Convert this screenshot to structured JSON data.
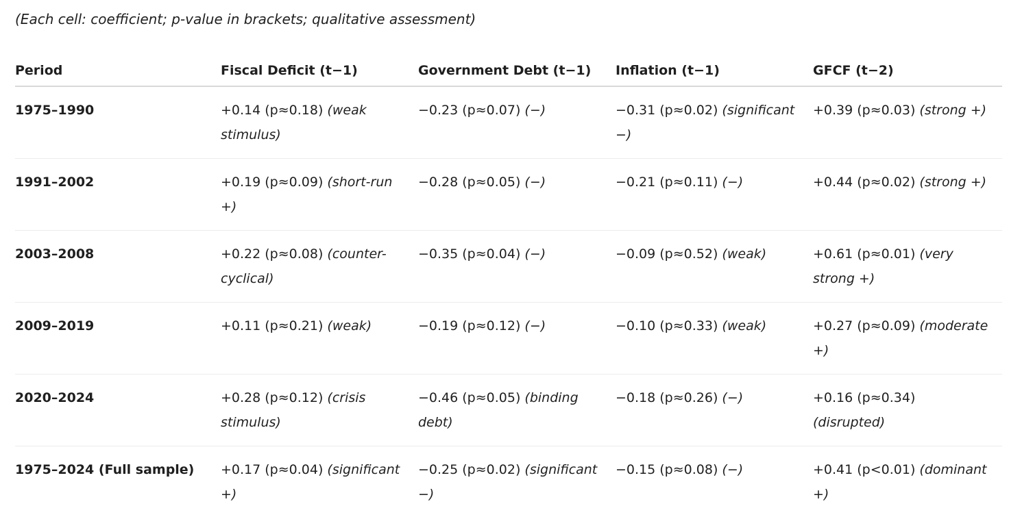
{
  "note": "(Each cell: coefficient; p-value in brackets; qualitative assessment)",
  "table": {
    "header": [
      "Period",
      "Fiscal Deficit (t−1)",
      "Government Debt (t−1)",
      "Inflation (t−1)",
      "GFCF (t−2)"
    ],
    "rows": [
      {
        "period": "1975–1990",
        "cells": [
          {
            "value": "+0.14 (p≈0.18)",
            "assessment": "(weak stimulus)"
          },
          {
            "value": "−0.23 (p≈0.07)",
            "assessment": "(−)"
          },
          {
            "value": "−0.31 (p≈0.02)",
            "assessment": "(significant −)"
          },
          {
            "value": "+0.39 (p≈0.03)",
            "assessment": "(strong +)"
          }
        ]
      },
      {
        "period": "1991–2002",
        "cells": [
          {
            "value": "+0.19 (p≈0.09)",
            "assessment": "(short-run +)"
          },
          {
            "value": "−0.28 (p≈0.05)",
            "assessment": "(−)"
          },
          {
            "value": "−0.21 (p≈0.11)",
            "assessment": "(−)"
          },
          {
            "value": "+0.44 (p≈0.02)",
            "assessment": "(strong +)"
          }
        ]
      },
      {
        "period": "2003–2008",
        "cells": [
          {
            "value": "+0.22 (p≈0.08)",
            "assessment": "(counter-cyclical)"
          },
          {
            "value": "−0.35 (p≈0.04)",
            "assessment": "(−)"
          },
          {
            "value": "−0.09 (p≈0.52)",
            "assessment": "(weak)"
          },
          {
            "value": "+0.61 (p≈0.01)",
            "assessment": "(very strong +)"
          }
        ]
      },
      {
        "period": "2009–2019",
        "cells": [
          {
            "value": "+0.11 (p≈0.21)",
            "assessment": "(weak)"
          },
          {
            "value": "−0.19 (p≈0.12)",
            "assessment": "(−)"
          },
          {
            "value": "−0.10 (p≈0.33)",
            "assessment": "(weak)"
          },
          {
            "value": "+0.27 (p≈0.09)",
            "assessment": "(moderate +)"
          }
        ]
      },
      {
        "period": "2020–2024",
        "cells": [
          {
            "value": "+0.28 (p≈0.12)",
            "assessment": "(crisis stimulus)"
          },
          {
            "value": "−0.46 (p≈0.05)",
            "assessment": "(binding debt)"
          },
          {
            "value": "−0.18 (p≈0.26)",
            "assessment": "(−)"
          },
          {
            "value": "+0.16 (p≈0.34)",
            "assessment": "(disrupted)"
          }
        ]
      },
      {
        "period": "1975–2024 (Full sample)",
        "cells": [
          {
            "value": "+0.17 (p≈0.04)",
            "assessment": "(significant +)"
          },
          {
            "value": "−0.25 (p≈0.02)",
            "assessment": "(significant −)"
          },
          {
            "value": "−0.15 (p≈0.08)",
            "assessment": "(−)"
          },
          {
            "value": "+0.41 (p<0.01)",
            "assessment": "(dominant +)"
          }
        ]
      }
    ]
  }
}
